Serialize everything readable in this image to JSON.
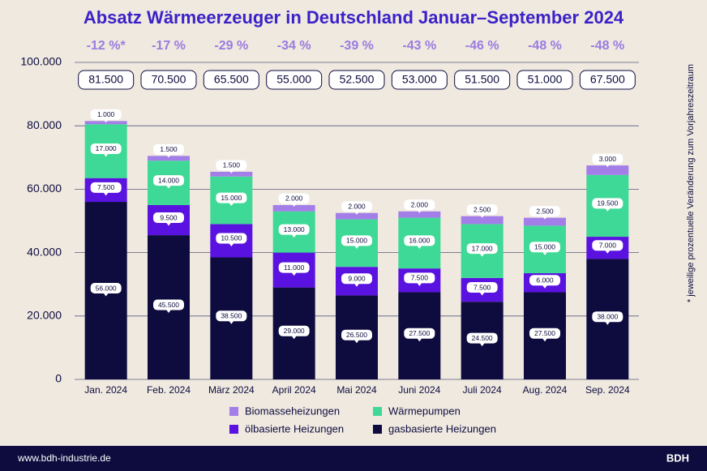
{
  "chart_data": {
    "type": "stacked-bar",
    "title": "Absatz Wärmeerzeuger in Deutschland Januar–September 2024",
    "categories": [
      "Jan. 2024",
      "Feb. 2024",
      "März 2024",
      "April 2024",
      "Mai 2024",
      "Juni 2024",
      "Juli 2024",
      "Aug. 2024",
      "Sep. 2024"
    ],
    "series": [
      {
        "name": "gasbasierte Heizungen",
        "color": "#0e0c3e",
        "values": [
          56000,
          45500,
          38500,
          29000,
          26500,
          27500,
          24500,
          27500,
          38000
        ],
        "value_labels": [
          "56.000",
          "45.500",
          "38.500",
          "29.000",
          "26.500",
          "27.500",
          "24.500",
          "27.500",
          "38.000"
        ]
      },
      {
        "name": "ölbasierte Heizungen",
        "color": "#5a12e0",
        "values": [
          7500,
          9500,
          10500,
          11000,
          9000,
          7500,
          7500,
          6000,
          7000
        ],
        "value_labels": [
          "7.500",
          "9.500",
          "10.500",
          "11.000",
          "9.000",
          "7.500",
          "7.500",
          "6.000",
          "7.000"
        ]
      },
      {
        "name": "Wärmepumpen",
        "color": "#3ed996",
        "values": [
          17000,
          14000,
          15000,
          13000,
          15000,
          16000,
          17000,
          15000,
          19500
        ],
        "value_labels": [
          "17.000",
          "14.000",
          "15.000",
          "13.000",
          "15.000",
          "16.000",
          "17.000",
          "15.000",
          "19.500"
        ]
      },
      {
        "name": "Biomasseheizungen",
        "color": "#a47ee8",
        "values": [
          1000,
          1500,
          1500,
          2000,
          2000,
          2000,
          2500,
          2500,
          3000
        ],
        "value_labels": [
          "1.000",
          "1.500",
          "1.500",
          "2.000",
          "2.000",
          "2.000",
          "2.500",
          "2.500",
          "3.000"
        ]
      }
    ],
    "totals": {
      "values": [
        81500,
        70500,
        65500,
        55000,
        52500,
        53000,
        51500,
        51000,
        67500
      ],
      "value_labels": [
        "81.500",
        "70.500",
        "65.500",
        "55.000",
        "52.500",
        "53.000",
        "51.500",
        "51.000",
        "67.500"
      ]
    },
    "changes": {
      "values": [
        -12,
        -17,
        -29,
        -34,
        -39,
        -43,
        -46,
        -48,
        -48
      ],
      "value_labels": [
        "-12 %*",
        "-17 %",
        "-29 %",
        "-34 %",
        "-39 %",
        "-43 %",
        "-46 %",
        "-48 %",
        "-48 %"
      ]
    },
    "ylim": [
      0,
      100000
    ],
    "yticks": [
      0,
      {
        "value": 20000,
        "label": "20.000"
      },
      {
        "value": 40000,
        "label": "40.000"
      },
      {
        "value": 60000,
        "label": "60.000"
      },
      {
        "value": 80000,
        "label": "80.000"
      },
      {
        "value": 100000,
        "label": "100.000"
      }
    ],
    "grid": true,
    "footnote": "* jeweilige prozentuelle Veränderung zum Vorjahreszeitraum"
  },
  "footer": {
    "url": "www.bdh-industrie.de",
    "brand": "BDH"
  }
}
